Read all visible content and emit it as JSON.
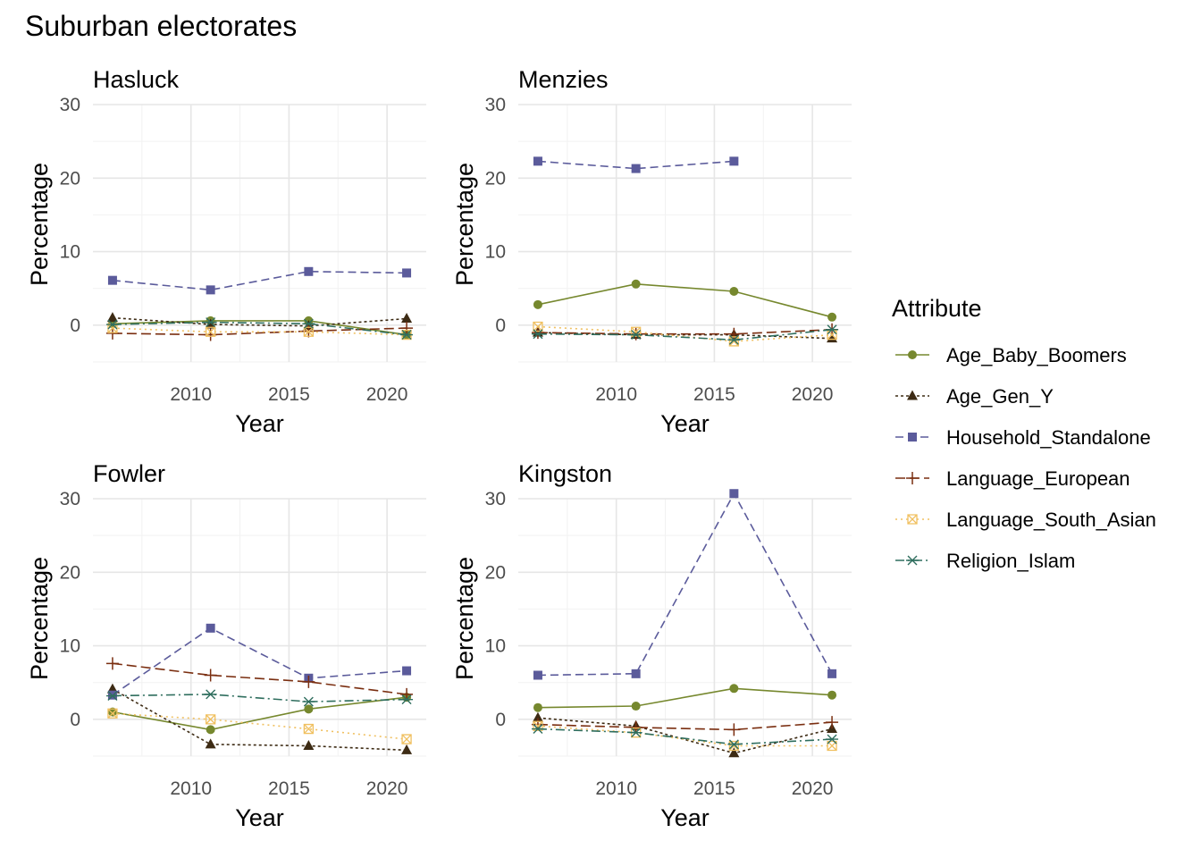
{
  "chart_data": {
    "type": "line",
    "title": "Suburban electorates",
    "xlabel": "Year",
    "ylabel": "Percentage",
    "xlim": [
      2005,
      2022
    ],
    "ylim": [
      -5,
      30
    ],
    "x_ticks": [
      2010,
      2015,
      2020
    ],
    "y_ticks": [
      0,
      10,
      20,
      30
    ],
    "grid": true,
    "legend": {
      "title": "Attribute",
      "position": "right",
      "items": [
        {
          "name": "Age_Baby_Boomers",
          "color": "#76882e",
          "dash": "",
          "marker": "circle"
        },
        {
          "name": "Age_Gen_Y",
          "color": "#3d2b14",
          "dash": "3,3",
          "marker": "triangle"
        },
        {
          "name": "Household_Standalone",
          "color": "#5b5b9b",
          "dash": "9,5",
          "marker": "square"
        },
        {
          "name": "Language_European",
          "color": "#7a2e10",
          "dash": "11,5",
          "marker": "plus"
        },
        {
          "name": "Language_South_Asian",
          "color": "#f0c060",
          "dash": "2,4",
          "marker": "boxx"
        },
        {
          "name": "Religion_Islam",
          "color": "#2f6e5e",
          "dash": "10,4,2,4",
          "marker": "asterisk"
        }
      ]
    },
    "panels": [
      {
        "name": "Hasluck",
        "series": [
          {
            "name": "Age_Baby_Boomers",
            "x": [
              2006,
              2011,
              2016,
              2021
            ],
            "y": [
              0.2,
              0.6,
              0.6,
              -1.3
            ]
          },
          {
            "name": "Age_Gen_Y",
            "x": [
              2006,
              2011,
              2016,
              2021
            ],
            "y": [
              1.0,
              0.1,
              -0.1,
              0.9
            ]
          },
          {
            "name": "Household_Standalone",
            "x": [
              2006,
              2011,
              2016,
              2021
            ],
            "y": [
              6.1,
              4.8,
              7.3,
              7.1
            ]
          },
          {
            "name": "Language_European",
            "x": [
              2006,
              2011,
              2016,
              2021
            ],
            "y": [
              -1.1,
              -1.3,
              -0.8,
              -0.4
            ]
          },
          {
            "name": "Language_South_Asian",
            "x": [
              2006,
              2011,
              2016,
              2021
            ],
            "y": [
              -0.4,
              -0.9,
              -0.9,
              -1.3
            ]
          },
          {
            "name": "Religion_Islam",
            "x": [
              2006,
              2011,
              2016,
              2021
            ],
            "y": [
              0.1,
              0.4,
              0.2,
              -1.3
            ]
          }
        ]
      },
      {
        "name": "Menzies",
        "series": [
          {
            "name": "Age_Baby_Boomers",
            "x": [
              2006,
              2011,
              2016,
              2021
            ],
            "y": [
              2.8,
              5.6,
              4.6,
              1.1
            ]
          },
          {
            "name": "Age_Gen_Y",
            "x": [
              2006,
              2011,
              2016,
              2021
            ],
            "y": [
              -1.0,
              -1.3,
              -1.3,
              -1.8
            ]
          },
          {
            "name": "Household_Standalone",
            "x": [
              2006,
              2011,
              2016
            ],
            "y": [
              22.3,
              21.3,
              22.3
            ]
          },
          {
            "name": "Language_European",
            "x": [
              2006,
              2011,
              2016,
              2021
            ],
            "y": [
              -1.0,
              -1.2,
              -1.2,
              -0.6
            ]
          },
          {
            "name": "Language_South_Asian",
            "x": [
              2006,
              2011,
              2016,
              2021
            ],
            "y": [
              -0.2,
              -0.9,
              -2.2,
              -1.3
            ]
          },
          {
            "name": "Religion_Islam",
            "x": [
              2006,
              2011,
              2016,
              2021
            ],
            "y": [
              -1.2,
              -1.3,
              -2.0,
              -0.6
            ]
          }
        ]
      },
      {
        "name": "Fowler",
        "series": [
          {
            "name": "Age_Baby_Boomers",
            "x": [
              2006,
              2011,
              2016,
              2021
            ],
            "y": [
              1.0,
              -1.4,
              1.4,
              3.0
            ]
          },
          {
            "name": "Age_Gen_Y",
            "x": [
              2006,
              2011,
              2016,
              2021
            ],
            "y": [
              4.1,
              -3.4,
              -3.6,
              -4.2
            ]
          },
          {
            "name": "Household_Standalone",
            "x": [
              2006,
              2011,
              2016,
              2021
            ],
            "y": [
              3.3,
              12.4,
              5.6,
              6.6
            ]
          },
          {
            "name": "Language_European",
            "x": [
              2006,
              2011,
              2016,
              2021
            ],
            "y": [
              7.6,
              6.0,
              5.1,
              3.4
            ]
          },
          {
            "name": "Language_South_Asian",
            "x": [
              2006,
              2011,
              2016,
              2021
            ],
            "y": [
              0.8,
              0.0,
              -1.3,
              -2.7
            ]
          },
          {
            "name": "Religion_Islam",
            "x": [
              2006,
              2011,
              2016,
              2021
            ],
            "y": [
              3.2,
              3.4,
              2.4,
              2.7
            ]
          }
        ]
      },
      {
        "name": "Kingston",
        "series": [
          {
            "name": "Age_Baby_Boomers",
            "x": [
              2006,
              2011,
              2016,
              2021
            ],
            "y": [
              1.6,
              1.8,
              4.2,
              3.3
            ]
          },
          {
            "name": "Age_Gen_Y",
            "x": [
              2006,
              2011,
              2016,
              2021
            ],
            "y": [
              0.2,
              -0.9,
              -4.6,
              -1.3
            ]
          },
          {
            "name": "Household_Standalone",
            "x": [
              2006,
              2011,
              2016,
              2021
            ],
            "y": [
              6.0,
              6.2,
              30.7,
              6.2
            ]
          },
          {
            "name": "Language_European",
            "x": [
              2006,
              2011,
              2016,
              2021
            ],
            "y": [
              -0.7,
              -1.1,
              -1.4,
              -0.4
            ]
          },
          {
            "name": "Language_South_Asian",
            "x": [
              2006,
              2011,
              2016,
              2021
            ],
            "y": [
              -0.9,
              -1.8,
              -3.6,
              -3.6
            ]
          },
          {
            "name": "Religion_Islam",
            "x": [
              2006,
              2011,
              2016,
              2021
            ],
            "y": [
              -1.3,
              -1.8,
              -3.4,
              -2.7
            ]
          }
        ]
      }
    ]
  }
}
